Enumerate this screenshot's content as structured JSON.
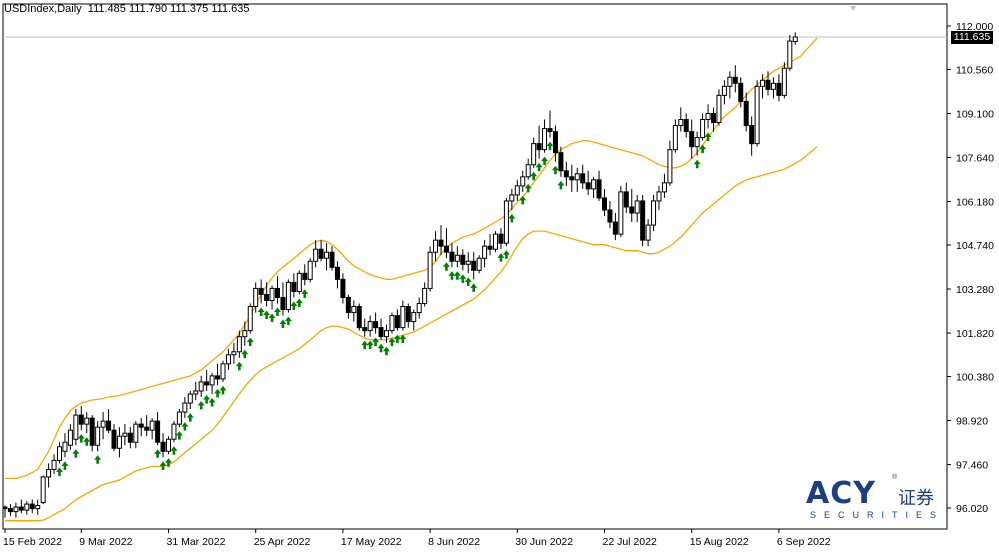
{
  "header": {
    "symbol": "USDIndex,Daily",
    "ohlc": "111.485 111.790 111.375 111.635"
  },
  "current_price_label": "111.635",
  "logo": {
    "main": "ACY",
    "chinese": "证券",
    "sub": "SECURITIES",
    "reg": "®"
  },
  "colors": {
    "bands": "#ffa500",
    "arrows": "#008000",
    "candles": "#000000",
    "grid": "#c0c0c0",
    "logo": "#1b3f82"
  },
  "chart_data": {
    "type": "candlestick",
    "title": "USDIndex,Daily",
    "y_axis_ticks": [
      "112.000",
      "110.560",
      "109.100",
      "107.640",
      "106.180",
      "104.740",
      "103.280",
      "101.820",
      "100.380",
      "98.920",
      "97.460",
      "96.020"
    ],
    "x_axis_ticks": [
      "15 Feb 2022",
      "9 Mar 2022",
      "31 Mar 2022",
      "25 Apr 2022",
      "17 May 2022",
      "8 Jun 2022",
      "30 Jun 2022",
      "22 Jul 2022",
      "15 Aug 2022",
      "6 Sep 2022"
    ],
    "x_tick_bar_index": [
      0,
      14,
      30,
      46,
      62,
      78,
      94,
      110,
      126,
      142
    ],
    "ylim": [
      95.5,
      112.45
    ],
    "grid": false,
    "candles": [
      [
        96.05,
        96.1,
        95.7,
        96.0
      ],
      [
        96.0,
        96.15,
        95.75,
        95.9
      ],
      [
        95.9,
        96.2,
        95.7,
        96.05
      ],
      [
        96.05,
        96.3,
        95.85,
        95.95
      ],
      [
        95.95,
        96.25,
        95.8,
        96.15
      ],
      [
        96.15,
        96.3,
        95.85,
        96.0
      ],
      [
        96.0,
        96.3,
        95.8,
        96.1
      ],
      [
        96.2,
        97.1,
        96.15,
        97.05
      ],
      [
        97.05,
        97.5,
        96.7,
        97.3
      ],
      [
        97.3,
        97.8,
        97.15,
        97.6
      ],
      [
        97.6,
        98.2,
        97.5,
        98.05
      ],
      [
        97.9,
        98.5,
        97.7,
        98.2
      ],
      [
        98.1,
        98.8,
        97.95,
        98.6
      ],
      [
        98.3,
        99.3,
        98.1,
        99.1
      ],
      [
        99.1,
        99.4,
        98.6,
        98.8
      ],
      [
        98.8,
        99.2,
        98.5,
        99.0
      ],
      [
        99.0,
        99.1,
        97.9,
        98.1
      ],
      [
        98.1,
        98.9,
        97.9,
        98.7
      ],
      [
        98.7,
        99.2,
        98.3,
        98.9
      ],
      [
        98.9,
        99.3,
        98.5,
        98.6
      ],
      [
        98.6,
        98.8,
        97.9,
        98.0
      ],
      [
        98.0,
        98.7,
        97.7,
        98.4
      ],
      [
        98.4,
        98.8,
        98.1,
        98.5
      ],
      [
        98.5,
        98.7,
        98.0,
        98.2
      ],
      [
        98.2,
        98.9,
        98.0,
        98.8
      ],
      [
        98.8,
        99.0,
        98.4,
        98.7
      ],
      [
        98.7,
        99.1,
        98.4,
        98.6
      ],
      [
        98.6,
        99.0,
        98.3,
        98.9
      ],
      [
        98.9,
        99.2,
        98.1,
        98.2
      ],
      [
        98.2,
        98.5,
        97.7,
        97.9
      ],
      [
        97.9,
        98.4,
        97.8,
        98.3
      ],
      [
        98.3,
        98.9,
        98.2,
        98.8
      ],
      [
        98.8,
        99.3,
        98.7,
        99.2
      ],
      [
        99.2,
        99.7,
        99.0,
        99.5
      ],
      [
        99.5,
        99.9,
        99.3,
        99.8
      ],
      [
        99.8,
        100.2,
        99.6,
        99.9
      ],
      [
        99.9,
        100.4,
        99.7,
        100.2
      ],
      [
        100.2,
        100.6,
        99.9,
        100.1
      ],
      [
        100.1,
        100.5,
        99.8,
        100.4
      ],
      [
        100.4,
        100.8,
        100.1,
        100.3
      ],
      [
        100.3,
        100.9,
        100.2,
        100.8
      ],
      [
        100.8,
        101.3,
        100.6,
        101.1
      ],
      [
        101.1,
        101.5,
        100.8,
        101.2
      ],
      [
        101.2,
        101.9,
        101.0,
        101.7
      ],
      [
        101.7,
        102.2,
        101.4,
        101.9
      ],
      [
        101.9,
        102.8,
        101.8,
        102.7
      ],
      [
        102.7,
        103.5,
        102.5,
        103.3
      ],
      [
        103.3,
        103.6,
        102.8,
        103.1
      ],
      [
        103.1,
        103.5,
        102.7,
        102.9
      ],
      [
        102.9,
        103.4,
        102.6,
        103.3
      ],
      [
        103.3,
        103.7,
        102.8,
        103.0
      ],
      [
        103.0,
        103.5,
        102.4,
        102.6
      ],
      [
        102.6,
        103.6,
        102.5,
        103.5
      ],
      [
        103.5,
        103.8,
        103.0,
        103.2
      ],
      [
        103.2,
        103.9,
        103.1,
        103.8
      ],
      [
        103.8,
        104.1,
        103.4,
        103.6
      ],
      [
        103.6,
        104.3,
        103.5,
        104.2
      ],
      [
        104.2,
        104.9,
        104.0,
        104.6
      ],
      [
        104.6,
        104.9,
        104.2,
        104.3
      ],
      [
        104.3,
        104.8,
        103.9,
        104.5
      ],
      [
        104.5,
        104.7,
        103.9,
        104.0
      ],
      [
        104.0,
        104.2,
        103.3,
        103.6
      ],
      [
        103.6,
        103.8,
        102.8,
        103.0
      ],
      [
        103.0,
        103.1,
        102.3,
        102.5
      ],
      [
        102.5,
        102.9,
        102.2,
        102.7
      ],
      [
        102.7,
        102.8,
        101.9,
        102.0
      ],
      [
        102.0,
        102.3,
        101.7,
        101.9
      ],
      [
        101.9,
        102.4,
        101.7,
        102.2
      ],
      [
        102.2,
        102.5,
        101.8,
        102.0
      ],
      [
        102.0,
        102.3,
        101.6,
        101.7
      ],
      [
        101.7,
        102.1,
        101.5,
        101.9
      ],
      [
        101.9,
        102.5,
        101.8,
        102.4
      ],
      [
        102.4,
        102.6,
        101.9,
        102.0
      ],
      [
        102.0,
        102.9,
        101.9,
        102.7
      ],
      [
        102.7,
        102.8,
        102.0,
        102.2
      ],
      [
        102.2,
        102.6,
        101.9,
        102.5
      ],
      [
        102.5,
        103.0,
        102.3,
        102.8
      ],
      [
        102.8,
        103.5,
        102.7,
        103.3
      ],
      [
        103.3,
        104.7,
        103.2,
        104.5
      ],
      [
        104.5,
        105.2,
        104.2,
        104.9
      ],
      [
        104.9,
        105.4,
        104.4,
        104.7
      ],
      [
        104.7,
        105.3,
        104.3,
        104.5
      ],
      [
        104.5,
        104.8,
        104.0,
        104.2
      ],
      [
        104.2,
        104.7,
        104.0,
        104.4
      ],
      [
        104.4,
        104.6,
        103.9,
        104.1
      ],
      [
        104.1,
        104.5,
        103.8,
        104.2
      ],
      [
        104.2,
        104.5,
        103.6,
        103.9
      ],
      [
        103.9,
        104.4,
        103.8,
        104.3
      ],
      [
        104.3,
        104.9,
        104.0,
        104.7
      ],
      [
        104.7,
        105.1,
        104.4,
        104.6
      ],
      [
        104.6,
        105.2,
        104.5,
        105.1
      ],
      [
        105.1,
        105.3,
        104.6,
        104.8
      ],
      [
        104.8,
        106.3,
        104.7,
        106.2
      ],
      [
        106.2,
        106.6,
        105.9,
        106.4
      ],
      [
        106.4,
        106.9,
        106.2,
        106.7
      ],
      [
        106.7,
        107.2,
        106.5,
        107.0
      ],
      [
        107.0,
        107.6,
        106.9,
        107.4
      ],
      [
        107.4,
        108.3,
        107.3,
        108.1
      ],
      [
        108.1,
        108.7,
        107.6,
        107.9
      ],
      [
        107.9,
        108.9,
        107.8,
        108.6
      ],
      [
        108.6,
        109.2,
        108.3,
        108.5
      ],
      [
        108.5,
        108.7,
        107.5,
        107.8
      ],
      [
        107.8,
        108.0,
        107.0,
        107.2
      ],
      [
        107.2,
        107.5,
        106.7,
        107.0
      ],
      [
        107.0,
        107.4,
        106.5,
        106.9
      ],
      [
        106.9,
        107.3,
        106.5,
        107.1
      ],
      [
        107.1,
        107.4,
        106.6,
        106.8
      ],
      [
        106.8,
        107.2,
        106.4,
        106.6
      ],
      [
        106.6,
        107.0,
        106.3,
        106.9
      ],
      [
        106.9,
        107.2,
        106.2,
        106.3
      ],
      [
        106.3,
        106.6,
        105.7,
        105.9
      ],
      [
        105.9,
        106.2,
        105.3,
        105.5
      ],
      [
        105.5,
        105.8,
        104.9,
        105.1
      ],
      [
        105.1,
        106.7,
        105.0,
        106.5
      ],
      [
        106.5,
        106.8,
        105.8,
        106.0
      ],
      [
        106.0,
        106.6,
        105.5,
        105.8
      ],
      [
        105.8,
        106.4,
        105.5,
        106.2
      ],
      [
        106.2,
        106.4,
        104.7,
        104.9
      ],
      [
        104.9,
        105.6,
        104.7,
        105.4
      ],
      [
        105.4,
        106.4,
        105.2,
        106.2
      ],
      [
        106.2,
        106.7,
        105.9,
        106.5
      ],
      [
        106.5,
        107.1,
        106.3,
        106.8
      ],
      [
        106.8,
        108.2,
        106.7,
        107.9
      ],
      [
        107.9,
        108.9,
        107.8,
        108.7
      ],
      [
        108.7,
        109.3,
        108.5,
        108.9
      ],
      [
        108.9,
        109.1,
        108.3,
        108.5
      ],
      [
        108.5,
        108.9,
        107.6,
        108.0
      ],
      [
        108.0,
        108.5,
        107.7,
        108.3
      ],
      [
        108.3,
        109.1,
        108.2,
        108.9
      ],
      [
        108.9,
        109.4,
        108.6,
        109.1
      ],
      [
        109.1,
        109.3,
        108.5,
        108.8
      ],
      [
        108.8,
        109.9,
        108.7,
        109.7
      ],
      [
        109.7,
        110.2,
        109.4,
        110.0
      ],
      [
        110.0,
        110.5,
        109.6,
        110.3
      ],
      [
        110.3,
        110.7,
        109.8,
        110.1
      ],
      [
        110.1,
        110.3,
        109.3,
        109.5
      ],
      [
        109.5,
        109.8,
        108.5,
        108.7
      ],
      [
        108.7,
        109.0,
        107.7,
        108.1
      ],
      [
        108.1,
        110.2,
        108.0,
        110.0
      ],
      [
        110.0,
        110.4,
        109.6,
        110.2
      ],
      [
        110.2,
        110.5,
        109.7,
        109.9
      ],
      [
        109.9,
        110.3,
        109.6,
        110.1
      ],
      [
        110.1,
        110.4,
        109.5,
        109.7
      ],
      [
        109.7,
        110.8,
        109.6,
        110.6
      ],
      [
        110.6,
        111.7,
        110.5,
        111.5
      ],
      [
        111.485,
        111.79,
        111.375,
        111.635
      ]
    ],
    "upper_band": [
      97.0,
      97.0,
      97.0,
      97.05,
      97.1,
      97.2,
      97.3,
      97.6,
      97.9,
      98.3,
      98.7,
      99.0,
      99.25,
      99.4,
      99.5,
      99.55,
      99.6,
      99.62,
      99.65,
      99.7,
      99.72,
      99.75,
      99.8,
      99.85,
      99.9,
      99.95,
      100.0,
      100.05,
      100.1,
      100.15,
      100.2,
      100.25,
      100.3,
      100.35,
      100.4,
      100.5,
      100.6,
      100.75,
      100.9,
      101.05,
      101.2,
      101.4,
      101.6,
      101.8,
      102.1,
      102.4,
      102.75,
      103.1,
      103.4,
      103.65,
      103.85,
      104.0,
      104.15,
      104.3,
      104.45,
      104.6,
      104.75,
      104.85,
      104.9,
      104.85,
      104.75,
      104.6,
      104.4,
      104.2,
      104.05,
      103.95,
      103.85,
      103.75,
      103.7,
      103.65,
      103.6,
      103.6,
      103.65,
      103.7,
      103.75,
      103.8,
      103.85,
      103.9,
      104.0,
      104.2,
      104.45,
      104.65,
      104.8,
      104.9,
      105.0,
      105.05,
      105.1,
      105.2,
      105.3,
      105.4,
      105.5,
      105.6,
      105.75,
      105.95,
      106.15,
      106.35,
      106.55,
      106.8,
      107.05,
      107.3,
      107.55,
      107.75,
      107.9,
      108.0,
      108.1,
      108.15,
      108.2,
      108.2,
      108.15,
      108.1,
      108.05,
      108.0,
      107.95,
      107.9,
      107.85,
      107.8,
      107.75,
      107.7,
      107.6,
      107.5,
      107.4,
      107.35,
      107.3,
      107.3,
      107.35,
      107.45,
      107.6,
      107.8,
      108.05,
      108.3,
      108.55,
      108.8,
      109.0,
      109.15,
      109.3,
      109.5,
      109.7,
      109.9,
      110.05,
      110.2,
      110.35,
      110.5,
      110.6,
      110.7,
      110.8,
      110.9,
      111.0,
      111.2,
      111.4,
      111.6
    ],
    "lower_band": [
      95.6,
      95.6,
      95.6,
      95.6,
      95.6,
      95.6,
      95.6,
      95.62,
      95.7,
      95.8,
      95.9,
      96.0,
      96.15,
      96.3,
      96.4,
      96.5,
      96.6,
      96.7,
      96.8,
      96.85,
      96.9,
      96.95,
      97.05,
      97.15,
      97.25,
      97.3,
      97.35,
      97.4,
      97.4,
      97.4,
      97.45,
      97.55,
      97.7,
      97.85,
      98.0,
      98.15,
      98.3,
      98.45,
      98.6,
      98.8,
      99.05,
      99.3,
      99.55,
      99.8,
      100.05,
      100.25,
      100.45,
      100.6,
      100.7,
      100.8,
      100.9,
      101.0,
      101.1,
      101.2,
      101.3,
      101.45,
      101.6,
      101.75,
      101.9,
      102.0,
      102.05,
      102.05,
      102.0,
      101.95,
      101.85,
      101.75,
      101.65,
      101.6,
      101.6,
      101.6,
      101.6,
      101.65,
      101.7,
      101.75,
      101.8,
      101.85,
      101.95,
      102.05,
      102.15,
      102.25,
      102.35,
      102.45,
      102.55,
      102.65,
      102.75,
      102.85,
      102.95,
      103.1,
      103.25,
      103.45,
      103.65,
      103.85,
      104.1,
      104.4,
      104.7,
      104.95,
      105.1,
      105.2,
      105.2,
      105.2,
      105.15,
      105.1,
      105.05,
      105.0,
      104.95,
      104.9,
      104.85,
      104.8,
      104.75,
      104.75,
      104.75,
      104.7,
      104.65,
      104.6,
      104.55,
      104.55,
      104.55,
      104.5,
      104.45,
      104.45,
      104.5,
      104.6,
      104.7,
      104.85,
      105.0,
      105.2,
      105.4,
      105.6,
      105.8,
      105.95,
      106.1,
      106.25,
      106.4,
      106.55,
      106.7,
      106.8,
      106.9,
      106.95,
      107.0,
      107.05,
      107.1,
      107.15,
      107.2,
      107.25,
      107.35,
      107.45,
      107.55,
      107.7,
      107.85,
      108.0
    ],
    "up_arrow_bar_index": [
      10,
      11,
      13,
      14,
      15,
      17,
      28,
      29,
      30,
      31,
      32,
      33,
      34,
      36,
      37,
      38,
      39,
      40,
      43,
      44,
      45,
      47,
      48,
      49,
      50,
      51,
      52,
      53,
      54,
      55,
      66,
      67,
      68,
      69,
      70,
      71,
      72,
      73,
      81,
      82,
      83,
      84,
      85,
      86,
      91,
      92,
      93,
      95,
      96,
      97,
      98,
      99,
      100,
      101,
      102,
      127,
      128,
      129
    ]
  }
}
